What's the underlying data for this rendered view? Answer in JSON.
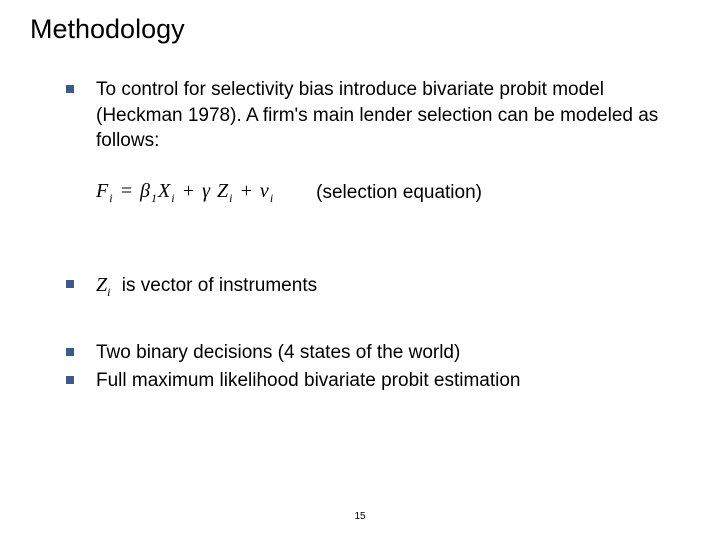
{
  "title": "Methodology",
  "bullets": {
    "b1": "To control for selectivity bias introduce bivariate probit model (Heckman 1978). A firm's main lender selection can be modeled as follows:",
    "b2_suffix": " is vector of instruments",
    "b3": "Two binary decisions (4 states of the world)",
    "b4": "Full maximum likelihood bivariate probit estimation"
  },
  "equation": {
    "label": "(selection equation)"
  },
  "page_number": "15",
  "colors": {
    "bullet_color": "#3a5a8a",
    "text_color": "#000000",
    "background": "#ffffff"
  },
  "typography": {
    "title_fontsize": 27,
    "body_fontsize": 19,
    "equation_font": "Times New Roman"
  }
}
